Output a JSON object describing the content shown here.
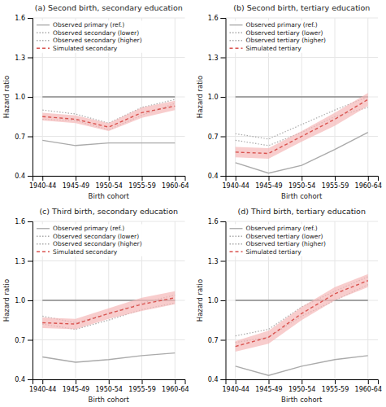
{
  "chart_data": [
    {
      "type": "line",
      "title": "(a) Second birth, secondary education",
      "categories": [
        "1940-44",
        "1945-49",
        "1950-54",
        "1955-59",
        "1960-64"
      ],
      "xlabel": "Birth cohort",
      "ylabel": "Hazard ratio",
      "ylim": [
        0.4,
        1.6
      ],
      "yticks": [
        0.4,
        0.7,
        {
          "value": 1.0,
          "label": "1.0"
        },
        1.3,
        1.6
      ],
      "grid": true,
      "legend": "upper left",
      "series": [
        {
          "values": [
            1.0,
            1.0,
            1.0,
            1.0,
            1.0
          ],
          "color": "#888888",
          "line_style": "solid"
        },
        {
          "name": "Observed primary (ref.)",
          "values": [
            0.67,
            0.63,
            0.65,
            0.65,
            0.65
          ],
          "color": "#aaaaaa",
          "line_style": "solid"
        },
        {
          "name": "Observed secondary (lower)",
          "values": [
            0.83,
            0.82,
            0.75,
            0.86,
            0.95
          ],
          "color": "#aaaaaa",
          "line_style": "dotted"
        },
        {
          "name": "Observed secondary (higher)",
          "values": [
            0.9,
            0.87,
            0.8,
            0.92,
            0.98
          ],
          "color": "#aaaaaa",
          "line_style": "dotted"
        },
        {
          "type": "band",
          "color": "#f5b8b8",
          "lower": [
            0.82,
            0.8,
            0.74,
            0.84,
            0.9
          ],
          "upper": [
            0.88,
            0.86,
            0.8,
            0.92,
            0.97
          ]
        },
        {
          "name": "Simulated secondary",
          "values": [
            0.85,
            0.83,
            0.77,
            0.88,
            0.93
          ],
          "color": "#d9534f",
          "line_style": "dashed"
        }
      ]
    },
    {
      "type": "line",
      "title": "(b) Second birth, tertiary education",
      "categories": [
        "1940-44",
        "1945-49",
        "1950-54",
        "1955-59",
        "1960-64"
      ],
      "xlabel": "Birth cohort",
      "ylabel": "Hazard ratio",
      "ylim": [
        0.4,
        1.6
      ],
      "yticks": [
        0.4,
        0.7,
        {
          "value": 1.0,
          "label": "1.0"
        },
        1.3,
        1.6
      ],
      "grid": true,
      "legend": "upper left",
      "series": [
        {
          "values": [
            1.0,
            1.0,
            1.0,
            1.0,
            1.0
          ],
          "color": "#888888",
          "line_style": "solid"
        },
        {
          "name": "Observed primary (ref.)",
          "values": [
            0.5,
            0.42,
            0.48,
            0.6,
            0.73
          ],
          "color": "#aaaaaa",
          "line_style": "solid"
        },
        {
          "name": "Observed tertiary (lower)",
          "values": [
            0.67,
            0.63,
            0.73,
            0.85,
            0.92
          ],
          "color": "#aaaaaa",
          "line_style": "dotted"
        },
        {
          "name": "Observed tertiary (higher)",
          "values": [
            0.72,
            0.68,
            0.79,
            0.9,
            1.0
          ],
          "color": "#aaaaaa",
          "line_style": "dotted"
        },
        {
          "type": "band",
          "color": "#f5b8b8",
          "lower": [
            0.54,
            0.53,
            0.66,
            0.78,
            0.93
          ],
          "upper": [
            0.62,
            0.61,
            0.74,
            0.88,
            1.03
          ]
        },
        {
          "name": "Simulated tertiary",
          "values": [
            0.58,
            0.57,
            0.7,
            0.83,
            0.98
          ],
          "color": "#d9534f",
          "line_style": "dashed"
        }
      ]
    },
    {
      "type": "line",
      "title": "(c) Third birth, secondary education",
      "categories": [
        "1940-44",
        "1945-49",
        "1950-54",
        "1955-59",
        "1960-64"
      ],
      "xlabel": "Birth cohort",
      "ylabel": "Hazard ratio",
      "ylim": [
        0.4,
        1.6
      ],
      "yticks": [
        0.4,
        0.7,
        {
          "value": 1.0,
          "label": "1.0"
        },
        1.3,
        1.6
      ],
      "grid": true,
      "legend": "upper left",
      "series": [
        {
          "values": [
            1.0,
            1.0,
            1.0,
            1.0,
            1.0
          ],
          "color": "#888888",
          "line_style": "solid"
        },
        {
          "name": "Observed primary (ref.)",
          "values": [
            0.57,
            0.53,
            0.55,
            0.58,
            0.6
          ],
          "color": "#aaaaaa",
          "line_style": "solid"
        },
        {
          "name": "Observed secondary (lower)",
          "values": [
            0.82,
            0.78,
            0.85,
            0.93,
            0.98
          ],
          "color": "#aaaaaa",
          "line_style": "dotted"
        },
        {
          "name": "Observed secondary (higher)",
          "values": [
            0.88,
            0.83,
            0.9,
            0.98,
            1.04
          ],
          "color": "#aaaaaa",
          "line_style": "dotted"
        },
        {
          "type": "band",
          "color": "#f5b8b8",
          "lower": [
            0.79,
            0.78,
            0.86,
            0.92,
            0.97
          ],
          "upper": [
            0.87,
            0.86,
            0.94,
            1.02,
            1.07
          ]
        },
        {
          "name": "Simulated secondary",
          "values": [
            0.83,
            0.82,
            0.9,
            0.97,
            1.02
          ],
          "color": "#d9534f",
          "line_style": "dashed"
        }
      ]
    },
    {
      "type": "line",
      "title": "(d) Third birth, tertiary education",
      "categories": [
        "1940-44",
        "1945-49",
        "1950-54",
        "1955-59",
        "1960-64"
      ],
      "xlabel": "Birth cohort",
      "ylabel": "Hazard ratio",
      "ylim": [
        0.4,
        1.6
      ],
      "yticks": [
        0.4,
        0.7,
        {
          "value": 1.0,
          "label": "1.0"
        },
        1.3,
        1.6
      ],
      "grid": true,
      "legend": "upper left",
      "series": [
        {
          "values": [
            1.0,
            1.0,
            1.0,
            1.0,
            1.0
          ],
          "color": "#888888",
          "line_style": "solid"
        },
        {
          "name": "Observed primary (ref.)",
          "values": [
            0.5,
            0.43,
            0.5,
            0.55,
            0.58
          ],
          "color": "#aaaaaa",
          "line_style": "solid"
        },
        {
          "name": "Observed tertiary (lower)",
          "values": [
            0.68,
            0.72,
            0.88,
            1.0,
            1.12
          ],
          "color": "#aaaaaa",
          "line_style": "dotted"
        },
        {
          "name": "Observed tertiary (higher)",
          "values": [
            0.73,
            0.78,
            0.95,
            1.07,
            1.18
          ],
          "color": "#aaaaaa",
          "line_style": "dotted"
        },
        {
          "type": "band",
          "color": "#f5b8b8",
          "lower": [
            0.61,
            0.67,
            0.85,
            1.0,
            1.1
          ],
          "upper": [
            0.69,
            0.77,
            0.95,
            1.1,
            1.2
          ]
        },
        {
          "name": "Simulated tertiary",
          "values": [
            0.65,
            0.72,
            0.9,
            1.05,
            1.15
          ],
          "color": "#d9534f",
          "line_style": "dashed"
        }
      ]
    }
  ]
}
